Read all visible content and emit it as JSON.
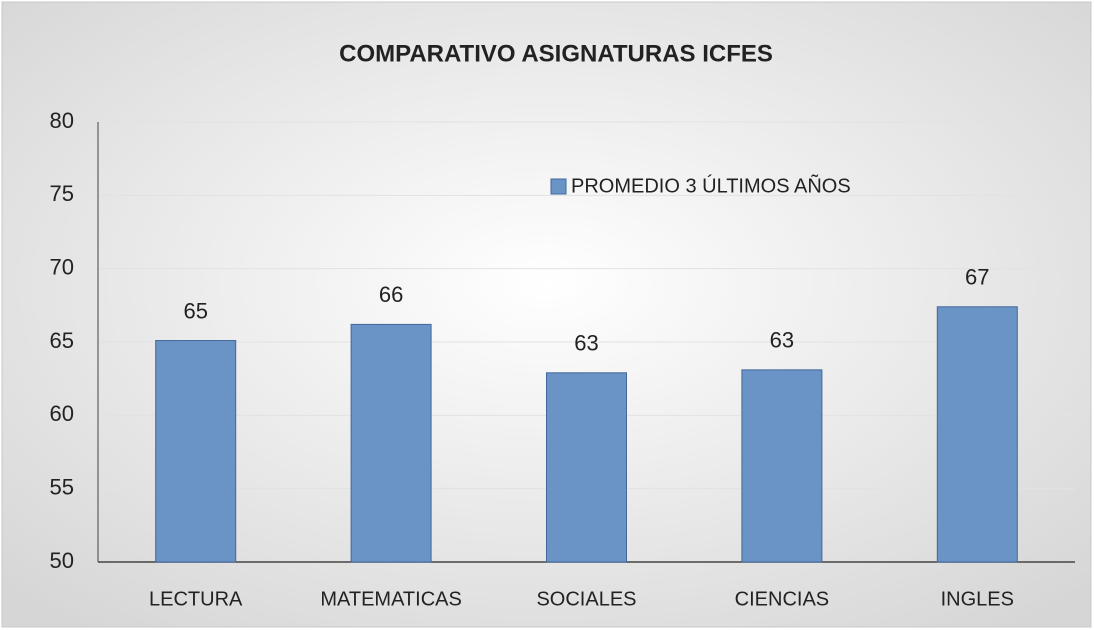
{
  "chart_data": {
    "type": "bar",
    "title": "COMPARATIVO ASIGNATURAS ICFES",
    "categories": [
      "LECTURA",
      "MATEMATICAS",
      "SOCIALES",
      "CIENCIAS",
      "INGLES"
    ],
    "series": [
      {
        "name": "PROMEDIO 3 ÚLTIMOS AÑOS",
        "color": "#6a93c6",
        "values": [
          65.1,
          66.2,
          62.9,
          63.1,
          67.4
        ],
        "value_labels": [
          "65",
          "66",
          "63",
          "63",
          "67"
        ]
      }
    ],
    "ylim": [
      50,
      80
    ],
    "yticks": [
      50,
      55,
      60,
      65,
      70,
      75,
      80
    ],
    "grid": true,
    "legend": "top-right"
  }
}
